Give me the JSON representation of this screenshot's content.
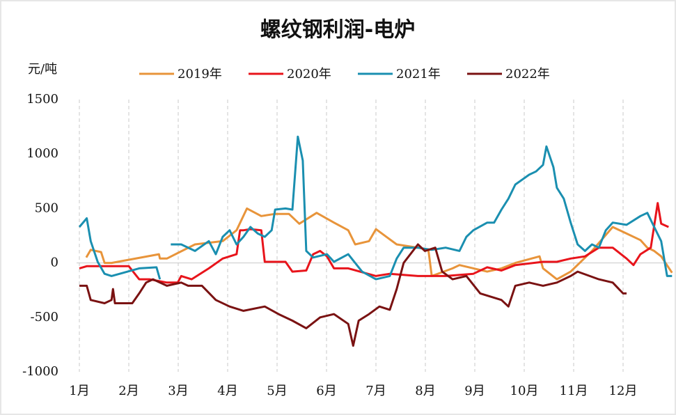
{
  "chart_data": {
    "type": "line",
    "title": "螺纹钢利润-电炉",
    "y_label": "元/吨",
    "xlim": [
      1,
      13
    ],
    "ylim": [
      -1000,
      1500
    ],
    "xticks": [
      {
        "value": 1,
        "label": "1月"
      },
      {
        "value": 2,
        "label": "2月"
      },
      {
        "value": 3,
        "label": "3月"
      },
      {
        "value": 4,
        "label": "4月"
      },
      {
        "value": 5,
        "label": "5月"
      },
      {
        "value": 6,
        "label": "6月"
      },
      {
        "value": 7,
        "label": "7月"
      },
      {
        "value": 8,
        "label": "8月"
      },
      {
        "value": 9,
        "label": "9月"
      },
      {
        "value": 10,
        "label": "10月"
      },
      {
        "value": 11,
        "label": "11月"
      },
      {
        "value": 12,
        "label": "12月"
      }
    ],
    "yticks": [
      -1000,
      -500,
      0,
      500,
      1000,
      1500
    ],
    "grid": true,
    "series": [
      {
        "name": "2019年",
        "color": "#e8943a",
        "x": [
          1.14,
          1.23,
          1.44,
          1.51,
          1.65,
          2.61,
          2.63,
          2.77,
          3.34,
          3.9,
          4.18,
          4.39,
          4.68,
          4.96,
          5.24,
          5.45,
          5.8,
          6.15,
          6.44,
          6.58,
          6.86,
          7.0,
          7.21,
          7.42,
          7.85,
          8.06,
          8.13,
          8.55,
          8.69,
          9.25,
          9.54,
          9.82,
          10.31,
          10.38,
          10.66,
          10.94,
          11.37,
          11.79,
          12.07,
          12.35,
          12.49,
          12.63,
          12.77,
          12.99
        ],
        "values": [
          50,
          120,
          100,
          0,
          0,
          80,
          40,
          40,
          170,
          200,
          300,
          500,
          430,
          450,
          450,
          360,
          460,
          370,
          300,
          170,
          200,
          310,
          240,
          170,
          140,
          120,
          -120,
          -50,
          -20,
          -80,
          -50,
          0,
          60,
          -50,
          -150,
          -80,
          110,
          330,
          270,
          210,
          140,
          110,
          60,
          -90
        ]
      },
      {
        "name": "2020年",
        "color": "#e8141b",
        "x": [
          1.0,
          1.15,
          2.0,
          2.21,
          2.42,
          2.77,
          2.99,
          3.06,
          3.27,
          3.62,
          3.9,
          4.18,
          4.25,
          4.32,
          4.46,
          4.68,
          4.75,
          5.17,
          5.31,
          5.59,
          5.73,
          5.87,
          6.01,
          6.15,
          6.44,
          7.0,
          7.28,
          7.85,
          8.41,
          8.97,
          9.25,
          9.54,
          9.82,
          10.38,
          10.66,
          10.94,
          11.23,
          11.51,
          11.79,
          12.07,
          12.21,
          12.35,
          12.56,
          12.7,
          12.77,
          12.92
        ],
        "values": [
          -50,
          -30,
          -30,
          -150,
          -150,
          -180,
          -180,
          -120,
          -150,
          -50,
          40,
          80,
          300,
          300,
          310,
          300,
          10,
          10,
          -80,
          -70,
          80,
          110,
          60,
          -50,
          -50,
          -120,
          -100,
          -120,
          -120,
          -100,
          -40,
          -70,
          -20,
          10,
          10,
          40,
          60,
          140,
          140,
          40,
          -20,
          80,
          140,
          550,
          360,
          330
        ]
      },
      {
        "name": "2021年",
        "color": "#1a8fb0",
        "x": [
          1.0,
          1.15,
          1.23,
          1.37,
          1.51,
          1.65,
          2.21,
          2.56,
          2.63,
          2.77,
          2.85,
          3.06,
          3.34,
          3.62,
          3.76,
          3.9,
          4.04,
          4.18,
          4.32,
          4.46,
          4.61,
          4.75,
          4.89,
          4.96,
          5.17,
          5.31,
          5.42,
          5.52,
          5.59,
          5.73,
          6.01,
          6.15,
          6.44,
          6.72,
          7.0,
          7.28,
          7.42,
          7.56,
          7.85,
          8.13,
          8.41,
          8.69,
          8.83,
          8.97,
          9.25,
          9.39,
          9.54,
          9.68,
          9.82,
          10.1,
          10.24,
          10.38,
          10.45,
          10.59,
          10.66,
          10.8,
          10.94,
          11.08,
          11.23,
          11.37,
          11.51,
          11.65,
          11.79,
          12.07,
          12.35,
          12.49,
          12.63,
          12.77,
          12.89,
          12.99
        ],
        "values": [
          330,
          410,
          200,
          10,
          -100,
          -120,
          -50,
          -40,
          -150,
          null,
          170,
          170,
          110,
          200,
          80,
          240,
          300,
          170,
          240,
          330,
          270,
          240,
          300,
          490,
          500,
          490,
          1160,
          940,
          110,
          50,
          80,
          10,
          80,
          -80,
          -150,
          -120,
          40,
          140,
          140,
          120,
          140,
          110,
          240,
          300,
          370,
          370,
          490,
          590,
          720,
          810,
          840,
          900,
          1070,
          880,
          690,
          590,
          370,
          170,
          110,
          170,
          140,
          300,
          370,
          350,
          430,
          460,
          330,
          200,
          -120,
          -120
        ]
      },
      {
        "name": "2022年",
        "color": "#7a1212",
        "x": [
          1.0,
          1.15,
          1.23,
          1.51,
          1.65,
          1.68,
          1.72,
          2.07,
          2.21,
          2.35,
          2.49,
          2.77,
          3.06,
          3.2,
          3.48,
          3.76,
          4.04,
          4.32,
          4.75,
          5.03,
          5.31,
          5.59,
          5.87,
          6.15,
          6.44,
          6.54,
          6.65,
          6.86,
          7.07,
          7.28,
          7.42,
          7.56,
          7.85,
          7.99,
          8.2,
          8.34,
          8.55,
          8.83,
          9.11,
          9.54,
          9.68,
          9.82,
          10.1,
          10.38,
          10.66,
          10.94,
          11.08,
          11.51,
          11.79,
          12.0,
          12.07
        ],
        "values": [
          -210,
          -210,
          -340,
          -370,
          -340,
          -240,
          -370,
          -370,
          -280,
          -180,
          -150,
          -210,
          -180,
          -210,
          -210,
          -340,
          -400,
          -440,
          -400,
          -470,
          -530,
          -600,
          -500,
          -470,
          -560,
          -760,
          -530,
          -470,
          -400,
          -430,
          -240,
          0,
          170,
          110,
          140,
          -80,
          -150,
          -120,
          -280,
          -340,
          -400,
          -210,
          -180,
          -210,
          -180,
          -120,
          -80,
          -150,
          -180,
          -280,
          -280
        ]
      }
    ]
  }
}
